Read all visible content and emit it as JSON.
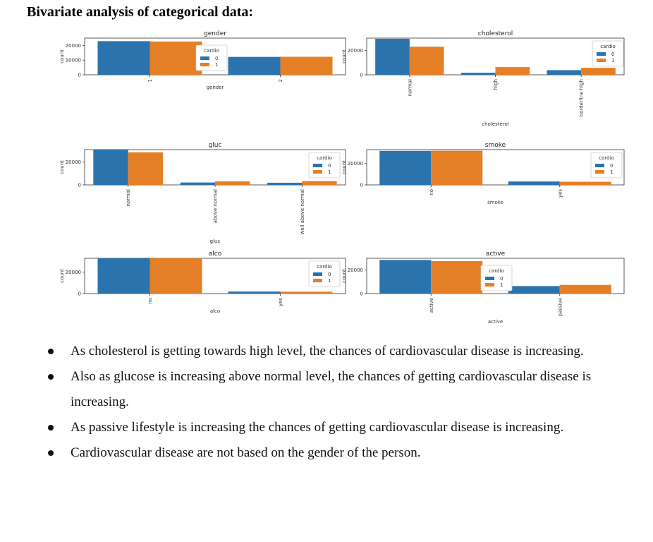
{
  "heading": "Bivariate analysis of categorical data:",
  "colors": {
    "series_0": "#2b73ad",
    "series_1": "#e57f26",
    "axis": "#333333"
  },
  "chart_data": [
    {
      "type": "bar",
      "title": "gender",
      "xlabel": "gender",
      "ylabel": "count",
      "categories": [
        "1",
        "2"
      ],
      "ylim": [
        0,
        25000
      ],
      "yticks": [
        0,
        10000,
        20000
      ],
      "legend": {
        "title": "cardio",
        "entries": [
          "0",
          "1"
        ],
        "placement": "center"
      },
      "series": [
        {
          "name": "0",
          "values": [
            22900,
            12200
          ]
        },
        {
          "name": "1",
          "values": [
            22700,
            12300
          ]
        }
      ]
    },
    {
      "type": "bar",
      "title": "cholesterol",
      "xlabel": "cholesterol",
      "ylabel": "count",
      "categories": [
        "normal",
        "high",
        "borderline high"
      ],
      "ylim": [
        0,
        30000
      ],
      "yticks": [
        0,
        20000
      ],
      "legend": {
        "title": "cardio",
        "entries": [
          "0",
          "1"
        ],
        "placement": "upper right"
      },
      "series": [
        {
          "name": "0",
          "values": [
            29400,
            1700,
            3800
          ]
        },
        {
          "name": "1",
          "values": [
            23000,
            6300,
            5700
          ]
        }
      ]
    },
    {
      "type": "bar",
      "title": "gluc",
      "xlabel": "gluc",
      "ylabel": "count",
      "categories": [
        "normal",
        "above normal",
        "well above normal"
      ],
      "ylim": [
        0,
        31000
      ],
      "yticks": [
        0,
        20000
      ],
      "legend": {
        "title": "cardio",
        "entries": [
          "0",
          "1"
        ],
        "placement": "upper right"
      },
      "series": [
        {
          "name": "0",
          "values": [
            30900,
            2100,
            1900
          ]
        },
        {
          "name": "1",
          "values": [
            28600,
            3100,
            3300
          ]
        }
      ]
    },
    {
      "type": "bar",
      "title": "smoke",
      "xlabel": "smoke",
      "ylabel": "count",
      "categories": [
        "no",
        "yes"
      ],
      "ylim": [
        0,
        33000
      ],
      "yticks": [
        0,
        20000
      ],
      "legend": {
        "title": "cardio",
        "entries": [
          "0",
          "1"
        ],
        "placement": "upper right"
      },
      "series": [
        {
          "name": "0",
          "values": [
            31800,
            3200
          ]
        },
        {
          "name": "1",
          "values": [
            32000,
            2900
          ]
        }
      ]
    },
    {
      "type": "bar",
      "title": "alco",
      "xlabel": "alco",
      "ylabel": "count",
      "categories": [
        "no",
        "yes"
      ],
      "ylim": [
        0,
        33000
      ],
      "yticks": [
        0,
        20000
      ],
      "legend": {
        "title": "cardio",
        "entries": [
          "0",
          "1"
        ],
        "placement": "upper right"
      },
      "series": [
        {
          "name": "0",
          "values": [
            33000,
            1900
          ]
        },
        {
          "name": "1",
          "values": [
            33100,
            1800
          ]
        }
      ]
    },
    {
      "type": "bar",
      "title": "active",
      "xlabel": "active",
      "ylabel": "count",
      "categories": [
        "active",
        "passive"
      ],
      "ylim": [
        0,
        30000
      ],
      "yticks": [
        0,
        20000
      ],
      "legend": {
        "title": "cardio",
        "entries": [
          "0",
          "1"
        ],
        "placement": "center"
      },
      "series": [
        {
          "name": "0",
          "values": [
            28600,
            6400
          ]
        },
        {
          "name": "1",
          "values": [
            27600,
            7400
          ]
        }
      ]
    }
  ],
  "bullets": [
    "As cholesterol is getting towards high level, the chances of cardiovascular disease is increasing.",
    "Also as glucose is increasing above normal level, the chances of getting cardiovascular disease is increasing.",
    "As passive lifestyle is increasing the chances of getting cardiovascular disease is increasing.",
    "Cardiovascular disease are not based on the gender of the person."
  ]
}
